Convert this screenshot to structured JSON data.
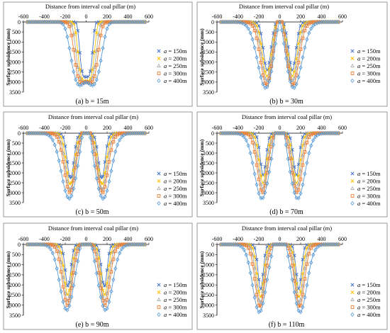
{
  "figure": {
    "x_ticks": [
      "-600",
      "-400",
      "-200",
      "0",
      "200",
      "400",
      "600"
    ],
    "y_ticks": [
      "0",
      "500",
      "1000",
      "1500",
      "2000",
      "2500",
      "3000",
      "3500"
    ]
  },
  "chart_data": [
    {
      "type": "scatter",
      "caption": "(a) b = 15m",
      "xlabel": "Distance from interval coal pillar (m)",
      "ylabel": "Surface subsidence (mm)",
      "xlim": [
        -600,
        600
      ],
      "ylim": [
        0,
        3500
      ],
      "y_inverted": true,
      "legend": "right",
      "series": [
        {
          "name": "a = 150m",
          "color": "#4472c4",
          "marker": "x",
          "center": 0,
          "sigma": 55,
          "depth": 2750,
          "pillar": 0
        },
        {
          "name": "a = 200m",
          "color": "#ffc000",
          "marker": "x",
          "center": 0,
          "sigma": 70,
          "depth": 3000,
          "pillar": 0.02
        },
        {
          "name": "a = 250m",
          "color": "#a5a5a5",
          "marker": "triangle",
          "center": 0,
          "sigma": 85,
          "depth": 3150,
          "pillar": 0.05
        },
        {
          "name": "a = 300m",
          "color": "#ed7d31",
          "marker": "square",
          "center": 0,
          "sigma": 100,
          "depth": 3250,
          "pillar": 0.08
        },
        {
          "name": "a = 400m",
          "color": "#5b9bd5",
          "marker": "diamond",
          "center": 0,
          "sigma": 130,
          "depth": 3350,
          "pillar": 0.1
        }
      ]
    },
    {
      "type": "scatter",
      "caption": "(b) b = 30m",
      "xlabel": "Distance from interval coal pillar (m)",
      "ylabel": "Surface subsidence (mm)",
      "xlim": [
        -600,
        600
      ],
      "ylim": [
        0,
        3500
      ],
      "y_inverted": true,
      "legend": "right",
      "series": [
        {
          "name": "a = 150m",
          "color": "#4472c4",
          "marker": "x",
          "sigma": 50,
          "depth": 2400,
          "pillar": 0.45
        },
        {
          "name": "a = 200m",
          "color": "#ffc000",
          "marker": "x",
          "sigma": 60,
          "depth": 2700,
          "pillar": 0.45
        },
        {
          "name": "a = 250m",
          "color": "#a5a5a5",
          "marker": "triangle",
          "sigma": 70,
          "depth": 2950,
          "pillar": 0.45
        },
        {
          "name": "a = 300m",
          "color": "#ed7d31",
          "marker": "square",
          "sigma": 80,
          "depth": 3150,
          "pillar": 0.5
        },
        {
          "name": "a = 400m",
          "color": "#5b9bd5",
          "marker": "diamond",
          "sigma": 110,
          "depth": 3300,
          "pillar": 0.5
        }
      ]
    },
    {
      "type": "scatter",
      "caption": "(c) b = 50m",
      "xlabel": "Distance from interval coal pillar (m)",
      "ylabel": "Surface subsidence (mm)",
      "xlim": [
        -600,
        600
      ],
      "ylim": [
        0,
        3500
      ],
      "y_inverted": true,
      "legend": "right",
      "series": [
        {
          "name": "a = 150m",
          "color": "#4472c4",
          "marker": "x",
          "sigma": 45,
          "depth": 2300,
          "pillar": 0.55
        },
        {
          "name": "a = 200m",
          "color": "#ffc000",
          "marker": "x",
          "sigma": 55,
          "depth": 2600,
          "pillar": 0.58
        },
        {
          "name": "a = 250m",
          "color": "#a5a5a5",
          "marker": "triangle",
          "sigma": 65,
          "depth": 2850,
          "pillar": 0.6
        },
        {
          "name": "a = 300m",
          "color": "#ed7d31",
          "marker": "square",
          "sigma": 75,
          "depth": 3000,
          "pillar": 0.62
        },
        {
          "name": "a = 400m",
          "color": "#5b9bd5",
          "marker": "diamond",
          "sigma": 105,
          "depth": 3300,
          "pillar": 0.62
        }
      ]
    },
    {
      "type": "scatter",
      "caption": "(d) b = 70m",
      "xlabel": "Distance from interval coal pillar (m)",
      "ylabel": "Surface subsidence (mm)",
      "xlim": [
        -600,
        600
      ],
      "ylim": [
        0,
        3500
      ],
      "y_inverted": true,
      "legend": "right",
      "series": [
        {
          "name": "a = 150m",
          "color": "#4472c4",
          "marker": "x",
          "sigma": 40,
          "depth": 2100,
          "pillar": 0.7
        },
        {
          "name": "a = 200m",
          "color": "#ffc000",
          "marker": "x",
          "sigma": 50,
          "depth": 2500,
          "pillar": 0.72
        },
        {
          "name": "a = 250m",
          "color": "#a5a5a5",
          "marker": "triangle",
          "sigma": 60,
          "depth": 2800,
          "pillar": 0.74
        },
        {
          "name": "a = 300m",
          "color": "#ed7d31",
          "marker": "square",
          "sigma": 70,
          "depth": 3000,
          "pillar": 0.75
        },
        {
          "name": "a = 400m",
          "color": "#5b9bd5",
          "marker": "diamond",
          "sigma": 100,
          "depth": 3300,
          "pillar": 0.75
        }
      ]
    },
    {
      "type": "scatter",
      "caption": "(e) b = 90m",
      "xlabel": "Distance from interval coal pillar (m)",
      "ylabel": "Surface subsidence (mm)",
      "xlim": [
        -600,
        600
      ],
      "ylim": [
        0,
        3500
      ],
      "y_inverted": true,
      "legend": "right",
      "series": [
        {
          "name": "a = 150m",
          "color": "#4472c4",
          "marker": "x",
          "sigma": 38,
          "depth": 2100,
          "pillar": 0.8
        },
        {
          "name": "a = 200m",
          "color": "#ffc000",
          "marker": "x",
          "sigma": 48,
          "depth": 2500,
          "pillar": 0.82
        },
        {
          "name": "a = 250m",
          "color": "#a5a5a5",
          "marker": "triangle",
          "sigma": 58,
          "depth": 2800,
          "pillar": 0.84
        },
        {
          "name": "a = 300m",
          "color": "#ed7d31",
          "marker": "square",
          "sigma": 68,
          "depth": 3000,
          "pillar": 0.85
        },
        {
          "name": "a = 400m",
          "color": "#5b9bd5",
          "marker": "diamond",
          "sigma": 95,
          "depth": 3250,
          "pillar": 0.85
        }
      ]
    },
    {
      "type": "scatter",
      "caption": "(f) b = 110m",
      "xlabel": "Distance from interval coal pillar (m)",
      "ylabel": "Surface subsidence (mm)",
      "xlim": [
        -600,
        600
      ],
      "ylim": [
        0,
        3500
      ],
      "y_inverted": true,
      "legend": "right",
      "series": [
        {
          "name": "a = 150m",
          "color": "#4472c4",
          "marker": "x",
          "sigma": 36,
          "depth": 2200,
          "pillar": 0.9
        },
        {
          "name": "a = 200m",
          "color": "#ffc000",
          "marker": "x",
          "sigma": 46,
          "depth": 2600,
          "pillar": 0.92
        },
        {
          "name": "a = 250m",
          "color": "#a5a5a5",
          "marker": "triangle",
          "sigma": 56,
          "depth": 2900,
          "pillar": 0.93
        },
        {
          "name": "a = 300m",
          "color": "#ed7d31",
          "marker": "square",
          "sigma": 66,
          "depth": 3100,
          "pillar": 0.94
        },
        {
          "name": "a = 400m",
          "color": "#5b9bd5",
          "marker": "diamond",
          "sigma": 92,
          "depth": 3350,
          "pillar": 0.94
        }
      ]
    }
  ]
}
